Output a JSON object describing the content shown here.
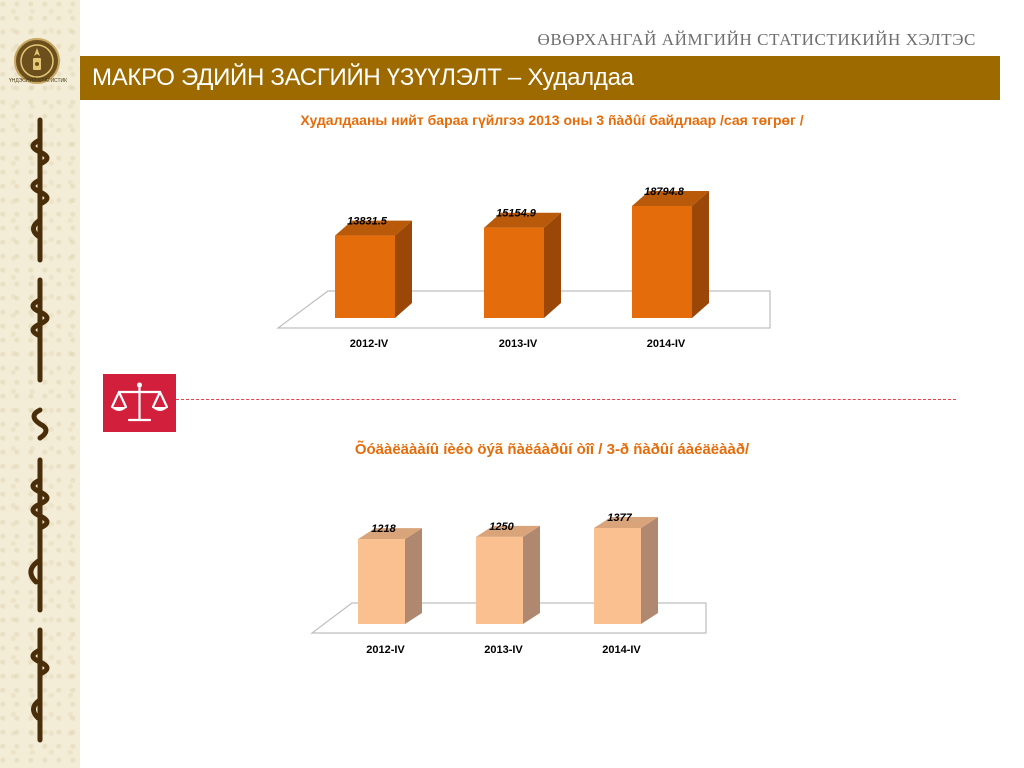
{
  "header": {
    "org_title": "ӨВӨРХАНГАЙ АЙМГИЙН СТАТИСТИКИЙН ХЭЛТЭС",
    "banner_title": "МАКРО ЭДИЙН ЗАСГИЙН ҮЗҮҮЛЭЛТ – Худалдаа",
    "logo_caption": "ҮНДЭСНИЙ СТАТИСТИК"
  },
  "icons": {
    "logo": "emblem-icon",
    "scales": "scales-icon"
  },
  "colors": {
    "banner": "#9d6a00",
    "chart1_front": "#e46c0a",
    "chart1_side": "#9a4708",
    "chart1_top": "#b85a0a",
    "chart2_front": "#fac090",
    "chart2_side": "#b08870",
    "chart2_top": "#d9a47a",
    "icon_box": "#d21f3c",
    "accent_text": "#e46c0a"
  },
  "chart_data": [
    {
      "type": "bar",
      "title": "Худалдааны нийт бараа гүйлгээ 2013 оны  3  ñàðûí  байдлаар /сая төгрөг /",
      "categories": [
        "2012-IV",
        "2013-IV",
        "2014-IV"
      ],
      "values": [
        13831.5,
        15154.9,
        18794.8
      ],
      "value_labels": [
        "13831.5",
        "15154.9",
        "18794.8"
      ],
      "xlabel": "",
      "ylabel": "",
      "ylim": [
        0,
        18794.8
      ],
      "grid": false,
      "legend": "none"
    },
    {
      "type": "bar",
      "title": "Õóäàëäààíû íèéò öýã ñàëáàðûí òîî / 3-ð ñàðûí áàéäëààð/",
      "categories": [
        "2012-IV",
        "2013-IV",
        "2014-IV"
      ],
      "values": [
        1218,
        1250,
        1377
      ],
      "value_labels": [
        "1218",
        "1250",
        "1377"
      ],
      "xlabel": "",
      "ylabel": "",
      "ylim": [
        0,
        1377
      ],
      "grid": false,
      "legend": "none"
    }
  ]
}
